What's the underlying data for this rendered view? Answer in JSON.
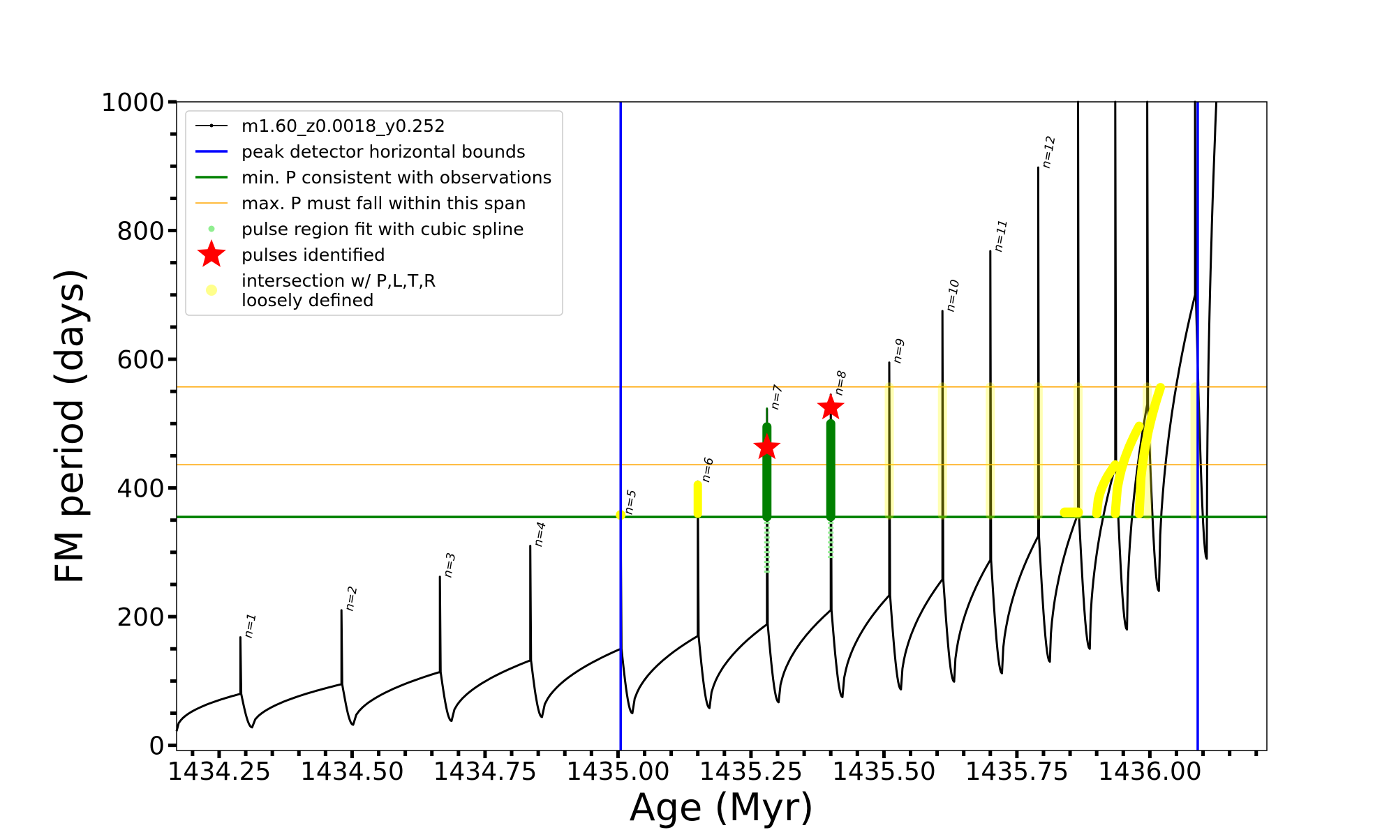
{
  "chart_data": {
    "type": "scatter",
    "xlabel": "Age (Myr)",
    "ylabel": "FM period (days)",
    "xlim": [
      1434.17,
      1436.22
    ],
    "ylim": [
      -8,
      1000
    ],
    "x_ticks": [
      1434.25,
      1434.5,
      1434.75,
      1435.0,
      1435.25,
      1435.5,
      1435.75,
      1436.0
    ],
    "x_tick_labels": [
      "1434.25",
      "1434.50",
      "1434.75",
      "1435.00",
      "1435.25",
      "1435.50",
      "1435.75",
      "1436.00"
    ],
    "y_ticks": [
      0,
      200,
      400,
      600,
      800,
      1000
    ],
    "y_tick_labels": [
      "0",
      "200",
      "400",
      "600",
      "800",
      "1000"
    ],
    "legend_position": "top-left",
    "colors": {
      "track": "#000000",
      "bounds": "#0000ff",
      "min_p": "#008000",
      "max_p": "#ffa500",
      "spline": "#90ee90",
      "pulse_star": "#ff0000",
      "loose": "#ffff00"
    },
    "series": [
      {
        "key": "track",
        "name": "m1.60_z0.0018_y0.252"
      },
      {
        "key": "bounds",
        "name": "peak detector horizontal bounds",
        "x": [
          1435.005,
          1436.09
        ]
      },
      {
        "key": "min_p",
        "name": "min. P consistent with observations",
        "y": 355
      },
      {
        "key": "max_p",
        "name": "max. P must fall within this span",
        "y": [
          436,
          557
        ]
      },
      {
        "key": "spline",
        "name": "pulse region fit with cubic spline"
      },
      {
        "key": "pulse_star",
        "name": "pulses identified",
        "points": [
          {
            "x": 1435.28,
            "y": 463
          },
          {
            "x": 1435.4,
            "y": 525
          }
        ]
      },
      {
        "key": "loose",
        "name": "intersection w/ P,L,T,R\nloosely defined"
      }
    ],
    "pulses": [
      {
        "label": "n=1",
        "x": 1434.29,
        "peak": 168,
        "base": 80,
        "min": 28,
        "end": 95
      },
      {
        "label": "n=2",
        "x": 1434.48,
        "peak": 210,
        "base": 95,
        "min": 32,
        "end": 114
      },
      {
        "label": "n=3",
        "x": 1434.665,
        "peak": 262,
        "base": 114,
        "min": 38,
        "end": 132
      },
      {
        "label": "n=4",
        "x": 1434.835,
        "peak": 310,
        "base": 132,
        "min": 44,
        "end": 150
      },
      {
        "label": "n=5",
        "x": 1435.005,
        "peak": 360,
        "base": 150,
        "min": 50,
        "end": 170
      },
      {
        "label": "n=6",
        "x": 1435.15,
        "peak": 410,
        "base": 170,
        "min": 58,
        "end": 188
      },
      {
        "label": "n=7",
        "x": 1435.28,
        "peak": 523,
        "base": 188,
        "min": 67,
        "end": 210
      },
      {
        "label": "n=8",
        "x": 1435.4,
        "peak": 545,
        "base": 210,
        "min": 75,
        "end": 233
      },
      {
        "label": "n=9",
        "x": 1435.51,
        "peak": 595,
        "base": 233,
        "min": 87,
        "end": 258
      },
      {
        "label": "n=10",
        "x": 1435.61,
        "peak": 675,
        "base": 258,
        "min": 99,
        "end": 288
      },
      {
        "label": "n=11",
        "x": 1435.7,
        "peak": 768,
        "base": 288,
        "min": 112,
        "end": 325
      },
      {
        "label": "n=12",
        "x": 1435.79,
        "peak": 898,
        "base": 325,
        "min": 130,
        "end": 360
      },
      {
        "label": "",
        "x": 1435.865,
        "peak": 1000,
        "base": 360,
        "min": 150,
        "end": 433
      },
      {
        "label": "",
        "x": 1435.935,
        "peak": 1000,
        "base": 433,
        "min": 180,
        "end": 530
      },
      {
        "label": "",
        "x": 1435.995,
        "peak": 1000,
        "base": 530,
        "min": 240,
        "end": 700
      },
      {
        "label": "",
        "x": 1436.085,
        "peak": 1000,
        "base": 700,
        "min": 290,
        "end": 1000
      }
    ]
  }
}
